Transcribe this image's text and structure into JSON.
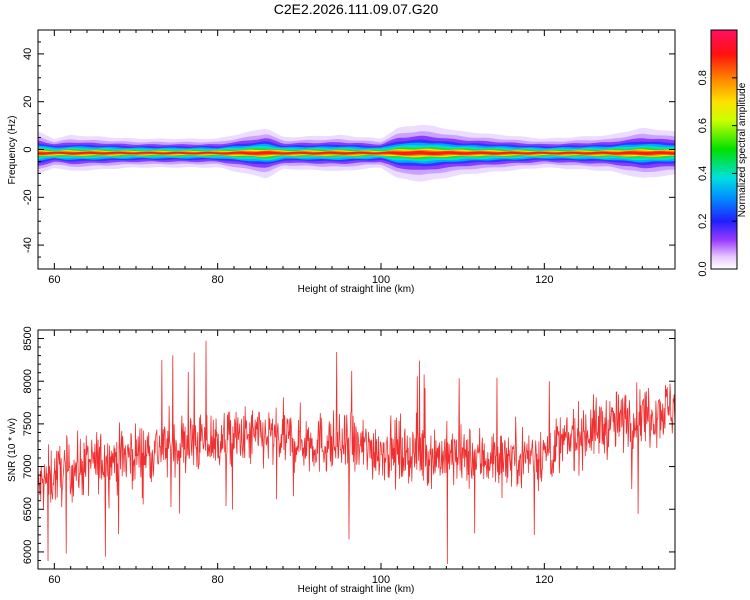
{
  "title": "C2E2.2026.111.09.07.G20",
  "chart_data": [
    {
      "type": "heatmap",
      "name": "spectrogram",
      "xlabel": "Height of straight line (km)",
      "ylabel": "Frequency (Hz)",
      "xlim": [
        58,
        136
      ],
      "ylim": [
        -50,
        50
      ],
      "xticks": [
        "60",
        "80",
        "100",
        "120"
      ],
      "yticks": [
        "-40",
        "-20",
        "0",
        "20",
        "40"
      ],
      "xtick_values": [
        60,
        80,
        100,
        120
      ],
      "ytick_values": [
        -40,
        -20,
        0,
        20,
        40
      ],
      "ridge_frequency_hz": -1.5,
      "colorbar": {
        "label": "Normalized spectral amplitude",
        "range": [
          0,
          1
        ],
        "ticks": [
          "0.0",
          "0.2",
          "0.4",
          "0.6",
          "0.8"
        ],
        "tick_values": [
          0.0,
          0.2,
          0.4,
          0.6,
          0.8
        ]
      },
      "band_halfwidth_profile": {
        "x": [
          58,
          60,
          62,
          70,
          80,
          84,
          86,
          88,
          95,
          100,
          102,
          105,
          110,
          120,
          128,
          132,
          136
        ],
        "halfwidth_hz": [
          3,
          2,
          2.5,
          2,
          2,
          3,
          3.5,
          2.2,
          2.5,
          2,
          3.5,
          4,
          3,
          2,
          2.5,
          3.5,
          3
        ]
      }
    },
    {
      "type": "line",
      "name": "snr",
      "xlabel": "Height of straight line (km)",
      "ylabel": "SNR (10 * v/v)",
      "xlim": [
        58,
        136
      ],
      "ylim": [
        5800,
        8600
      ],
      "xticks": [
        "60",
        "80",
        "100",
        "120"
      ],
      "yticks": [
        "6000",
        "6500",
        "7000",
        "7500",
        "8000",
        "8500"
      ],
      "xtick_values": [
        60,
        80,
        100,
        120
      ],
      "ytick_values": [
        6000,
        6500,
        7000,
        7500,
        8000,
        8500
      ],
      "color": "#f03030",
      "trend": {
        "x": [
          58,
          60,
          65,
          70,
          75,
          80,
          85,
          90,
          95,
          100,
          105,
          110,
          115,
          120,
          125,
          130,
          136
        ],
        "y": [
          6750,
          6900,
          7050,
          7150,
          7250,
          7300,
          7350,
          7300,
          7250,
          7200,
          7150,
          7100,
          7100,
          7150,
          7400,
          7550,
          7700
        ]
      },
      "noise_amplitude": 260,
      "sample_count": 1400
    }
  ]
}
